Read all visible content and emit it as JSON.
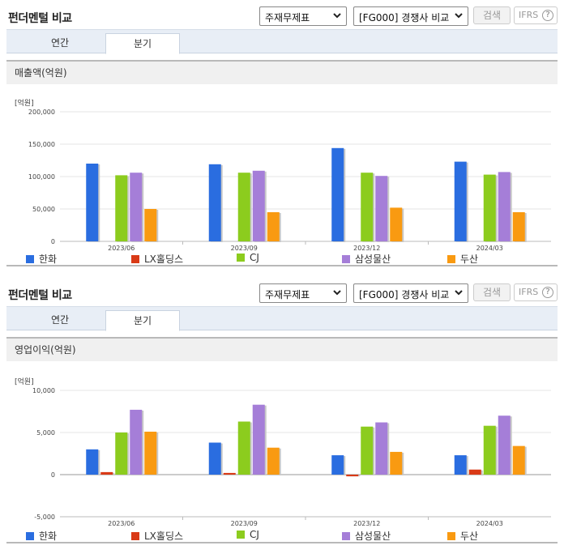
{
  "sections": [
    {
      "title": "펀더멘털 비교",
      "select1": "주재무제표",
      "select2": "[FG000] 경쟁사 비교",
      "search_label": "검색",
      "ifrs_label": "IFRS",
      "help_label": "?",
      "tabs": [
        "연간",
        "분기"
      ],
      "active_tab": 1,
      "panel_title": "매출액(억원)"
    },
    {
      "title": "펀더멘털 비교",
      "select1": "주재무제표",
      "select2": "[FG000] 경쟁사 비교",
      "search_label": "검색",
      "ifrs_label": "IFRS",
      "help_label": "?",
      "tabs": [
        "연간",
        "분기"
      ],
      "active_tab": 1,
      "panel_title": "영업이익(억원)"
    }
  ],
  "chart_data": [
    {
      "type": "bar",
      "unit_label": "[억원]",
      "categories": [
        "2023/06",
        "2023/09",
        "2023/12",
        "2024/03"
      ],
      "ylim": [
        0,
        200000
      ],
      "yticks": [
        0,
        50000,
        100000,
        150000,
        200000
      ],
      "ytick_labels": [
        "0",
        "50,000",
        "100,000",
        "150,000",
        "200,000"
      ],
      "grid": true,
      "legend_position": "bottom",
      "series": [
        {
          "name": "한화",
          "color": "#2a6de0",
          "values": [
            120000,
            119000,
            144000,
            123000
          ]
        },
        {
          "name": "LX홀딩스",
          "color": "#d93a17",
          "values": [
            null,
            null,
            null,
            null
          ]
        },
        {
          "name": "CJ",
          "color": "#8ccc1e",
          "values": [
            102000,
            106000,
            106000,
            103000
          ]
        },
        {
          "name": "삼성물산",
          "color": "#a57ed8",
          "values": [
            106000,
            109000,
            101000,
            107000
          ]
        },
        {
          "name": "두산",
          "color": "#f99a11",
          "values": [
            50000,
            45000,
            52000,
            45000
          ]
        }
      ]
    },
    {
      "type": "bar",
      "unit_label": "[억원]",
      "categories": [
        "2023/06",
        "2023/09",
        "2023/12",
        "2024/03"
      ],
      "ylim": [
        -5000,
        10000
      ],
      "yticks": [
        -5000,
        0,
        5000,
        10000
      ],
      "ytick_labels": [
        "-5,000",
        "0",
        "5,000",
        "10,000"
      ],
      "grid": true,
      "legend_position": "bottom",
      "series": [
        {
          "name": "한화",
          "color": "#2a6de0",
          "values": [
            3000,
            3800,
            2300,
            2300
          ]
        },
        {
          "name": "LX홀딩스",
          "color": "#d93a17",
          "values": [
            300,
            200,
            -200,
            600
          ]
        },
        {
          "name": "CJ",
          "color": "#8ccc1e",
          "values": [
            5000,
            6300,
            5700,
            5800
          ]
        },
        {
          "name": "삼성물산",
          "color": "#a57ed8",
          "values": [
            7700,
            8300,
            6200,
            7000
          ]
        },
        {
          "name": "두산",
          "color": "#f99a11",
          "values": [
            5100,
            3200,
            2700,
            3400
          ]
        }
      ]
    }
  ]
}
